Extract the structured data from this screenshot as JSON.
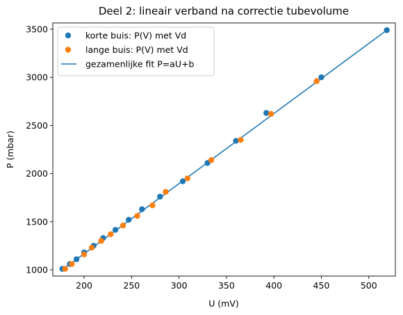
{
  "chart_data": {
    "type": "scatter",
    "title": "Deel 2: lineair verband na correctie tubevolume",
    "xlabel": "U (mV)",
    "ylabel": "P (mbar)",
    "xlim": [
      167,
      528
    ],
    "ylim": [
      935,
      3565
    ],
    "xticks": [
      200,
      250,
      300,
      350,
      400,
      450,
      500
    ],
    "yticks": [
      1000,
      1500,
      2000,
      2500,
      3000,
      3500
    ],
    "grid": false,
    "legend_position": "top-left",
    "series": [
      {
        "name": "korte buis: P(V) met Vd",
        "kind": "scatter",
        "color": "#1f77b4",
        "x": [
          177,
          185,
          192,
          200,
          210,
          220,
          233,
          247,
          261,
          280,
          304,
          330,
          360,
          392,
          450,
          519
        ],
        "y": [
          1010,
          1060,
          1110,
          1180,
          1250,
          1330,
          1415,
          1520,
          1630,
          1760,
          1920,
          2110,
          2340,
          2630,
          3000,
          3490
        ]
      },
      {
        "name": "lange buis: P(V) met Vd",
        "kind": "scatter",
        "color": "#ff7f0e",
        "x": [
          180,
          187,
          200,
          208,
          218,
          228,
          241,
          256,
          272,
          286,
          309,
          334,
          365,
          397,
          445
        ],
        "y": [
          1010,
          1060,
          1160,
          1230,
          1300,
          1370,
          1460,
          1560,
          1670,
          1810,
          1950,
          2140,
          2350,
          2620,
          2960
        ]
      },
      {
        "name": "gezamenlijke fit P=aU+b",
        "kind": "line",
        "color": "#1f77b4",
        "x": [
          177,
          519
        ],
        "y": [
          1000,
          3490
        ]
      }
    ]
  }
}
